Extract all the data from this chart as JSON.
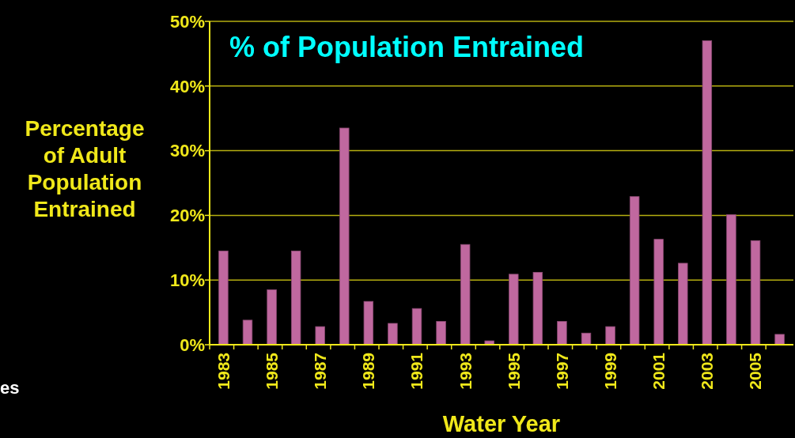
{
  "chart_data": {
    "type": "bar",
    "title": "% of Population Entrained",
    "xlabel": "Water Year",
    "ylabel": "Percentage of Adult Population Entrained",
    "categories": [
      "1983",
      null,
      "1985",
      null,
      "1987",
      null,
      "1989",
      null,
      "1991",
      null,
      "1993",
      null,
      "1995",
      null,
      "1997",
      null,
      "1999",
      null,
      "2001",
      null,
      "2003",
      null,
      "2005",
      null
    ],
    "values": [
      14.5,
      3.8,
      8.5,
      14.5,
      2.8,
      33.5,
      6.7,
      3.3,
      5.6,
      3.6,
      15.5,
      0.6,
      10.9,
      11.2,
      3.6,
      1.8,
      2.8,
      22.9,
      16.3,
      12.6,
      47,
      20.1,
      16.1,
      1.6
    ],
    "color": "#c0689f",
    "ylim": [
      0,
      50
    ],
    "yticks": [
      {
        "value": 0,
        "label": "0%"
      },
      {
        "value": 10,
        "label": "10%"
      },
      {
        "value": 20,
        "label": "20%"
      },
      {
        "value": 30,
        "label": "30%"
      },
      {
        "value": 40,
        "label": "40%"
      },
      {
        "value": 50,
        "label": "50%"
      }
    ],
    "grid": "y",
    "annotations": [
      "es"
    ]
  }
}
